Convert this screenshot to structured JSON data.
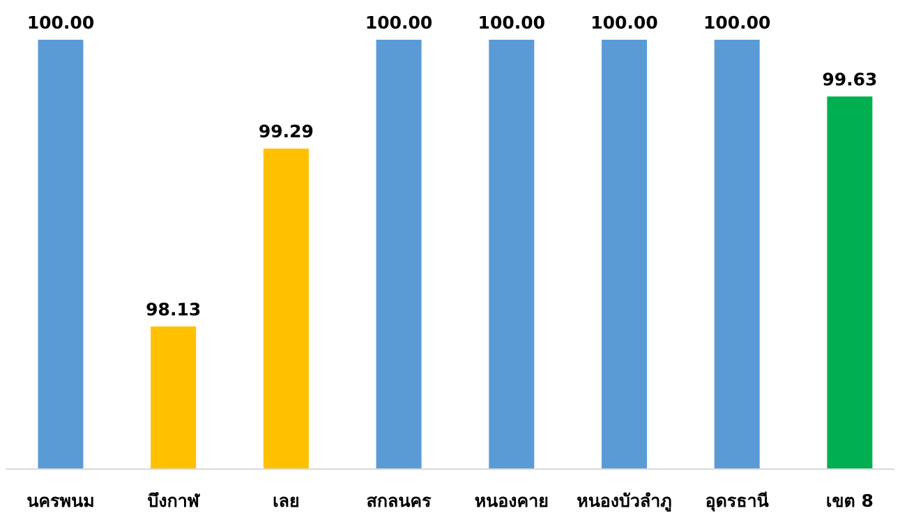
{
  "chart_data": {
    "type": "bar",
    "title": "",
    "xlabel": "",
    "ylabel": "",
    "categories": [
      "นครพนม",
      "บึงกาฬ",
      "เลย",
      "สกลนคร",
      "หนองคาย",
      "หนองบัวลำภู",
      "อุดรธานี",
      "เขต 8"
    ],
    "values": [
      100.0,
      98.13,
      99.29,
      100.0,
      100.0,
      100.0,
      100.0,
      99.63
    ],
    "value_labels": [
      "100.00",
      "98.13",
      "99.29",
      "100.00",
      "100.00",
      "100.00",
      "100.00",
      "99.63"
    ],
    "bar_colors": [
      "#5B9BD5",
      "#FFC000",
      "#FFC000",
      "#5B9BD5",
      "#5B9BD5",
      "#5B9BD5",
      "#5B9BD5",
      "#00B050"
    ],
    "ylim": [
      97.2,
      100.0
    ],
    "grid": false,
    "legend": "none",
    "axis_line_color": "#D9D9D9"
  }
}
